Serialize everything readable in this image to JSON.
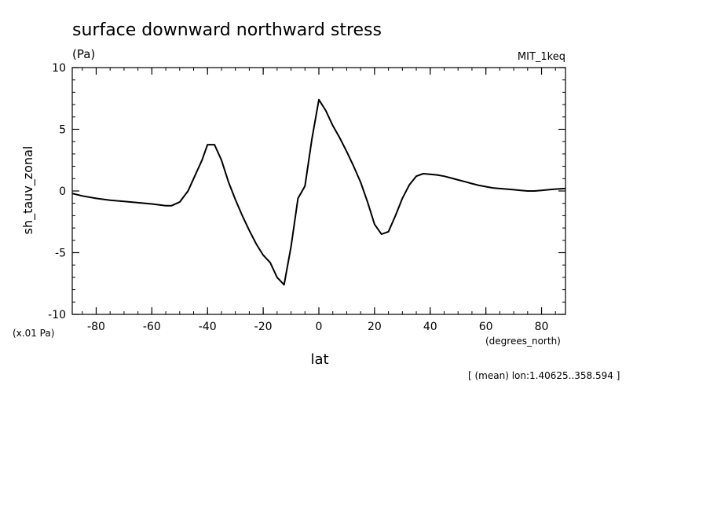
{
  "chart_data": {
    "type": "line",
    "title": "surface downward northward stress",
    "units_label": "(Pa)",
    "model_label": "MIT_1keq",
    "ylabel": "sh_tauv_zonal",
    "y_scale_label": "(x.01 Pa)",
    "xlabel": "lat",
    "x_units_label": "(degrees_north)",
    "footnote": "[ (mean) lon:1.40625..358.594 ]",
    "xlim": [
      -88.6,
      88.6
    ],
    "ylim": [
      -10,
      10
    ],
    "x_ticks": [
      -80,
      -60,
      -40,
      -20,
      0,
      20,
      40,
      60,
      80
    ],
    "x_tick_labels": [
      "-80",
      "-60",
      "-40",
      "-20",
      "0",
      "20",
      "40",
      "60",
      "80"
    ],
    "y_ticks": [
      -10,
      -5,
      0,
      5,
      10
    ],
    "y_tick_labels": [
      "-10",
      "-5",
      "0",
      "5",
      "10"
    ],
    "x_minor_step": 5,
    "y_minor_step": 1,
    "grid": false,
    "series": [
      {
        "color": "#000000",
        "x": [
          -88.6,
          -85,
          -80,
          -75,
          -70,
          -65,
          -60,
          -55,
          -53,
          -50,
          -47,
          -45,
          -42,
          -40,
          -37.5,
          -35,
          -32.5,
          -30,
          -27.5,
          -25,
          -22.5,
          -20,
          -17.5,
          -15,
          -12.5,
          -10,
          -7.5,
          -5,
          -2.5,
          0,
          2.5,
          5,
          7.5,
          10,
          12.5,
          15,
          17.5,
          20,
          22.5,
          25,
          27.5,
          30,
          32.5,
          35,
          37.5,
          40,
          42.5,
          45,
          47.5,
          50,
          52.5,
          55,
          57.5,
          60,
          62.5,
          65,
          67.5,
          70,
          72.5,
          75,
          77.5,
          80,
          82.5,
          85,
          88.6
        ],
        "values": [
          -0.2,
          -0.4,
          -0.6,
          -0.75,
          -0.85,
          -0.95,
          -1.05,
          -1.2,
          -1.2,
          -0.9,
          0.0,
          1.0,
          2.5,
          3.75,
          3.75,
          2.5,
          0.75,
          -0.7,
          -2.0,
          -3.2,
          -4.3,
          -5.2,
          -5.8,
          -7.0,
          -7.6,
          -4.5,
          -0.6,
          0.4,
          4.2,
          7.4,
          6.5,
          5.3,
          4.3,
          3.2,
          2.0,
          0.7,
          -0.9,
          -2.7,
          -3.5,
          -3.3,
          -2.0,
          -0.6,
          0.5,
          1.2,
          1.4,
          1.35,
          1.3,
          1.2,
          1.05,
          0.9,
          0.75,
          0.6,
          0.45,
          0.35,
          0.25,
          0.2,
          0.15,
          0.1,
          0.05,
          0.0,
          0.0,
          0.05,
          0.1,
          0.15,
          0.2
        ]
      }
    ]
  }
}
